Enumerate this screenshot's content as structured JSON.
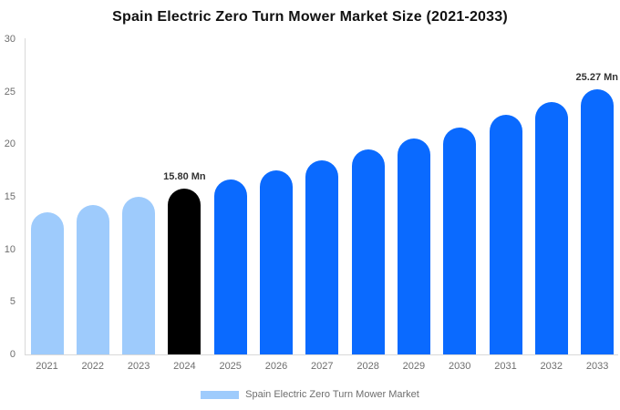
{
  "chart": {
    "title": "Spain Electric Zero Turn Mower Market Size (2021-2033)",
    "legend": {
      "label": "Spain Electric Zero Turn Mower Market",
      "swatch_color": "#9ecbfc"
    }
  },
  "chart_data": {
    "type": "bar",
    "title": "Spain Electric Zero Turn Mower Market Size (2021-2033)",
    "unit": "Mn",
    "categories": [
      "2021",
      "2022",
      "2023",
      "2024",
      "2025",
      "2026",
      "2027",
      "2028",
      "2029",
      "2030",
      "2031",
      "2032",
      "2033"
    ],
    "values": [
      13.51,
      14.23,
      15.0,
      15.8,
      16.65,
      17.54,
      18.48,
      19.47,
      20.52,
      21.62,
      22.78,
      23.99,
      25.27
    ],
    "bar_colors": [
      "#9ecbfc",
      "#9ecbfc",
      "#9ecbfc",
      "#000000",
      "#0a6aff",
      "#0a6aff",
      "#0a6aff",
      "#0a6aff",
      "#0a6aff",
      "#0a6aff",
      "#0a6aff",
      "#0a6aff",
      "#0a6aff"
    ],
    "data_labels": {
      "2024": "15.80 Mn",
      "2033": "25.27 Mn"
    },
    "xlabel": "",
    "ylabel": "",
    "ylim": [
      0,
      30
    ],
    "yticks": [
      0,
      5,
      10,
      15,
      20,
      25,
      30
    ],
    "grid": false,
    "legend_position": "bottom",
    "colors": {
      "historical": "#9ecbfc",
      "base_year": "#000000",
      "forecast": "#0a6aff",
      "axis_line": "#d9d9d9",
      "tick_text": "#6e6e6e",
      "data_label_text": "#333333",
      "title_text": "#111111"
    }
  }
}
